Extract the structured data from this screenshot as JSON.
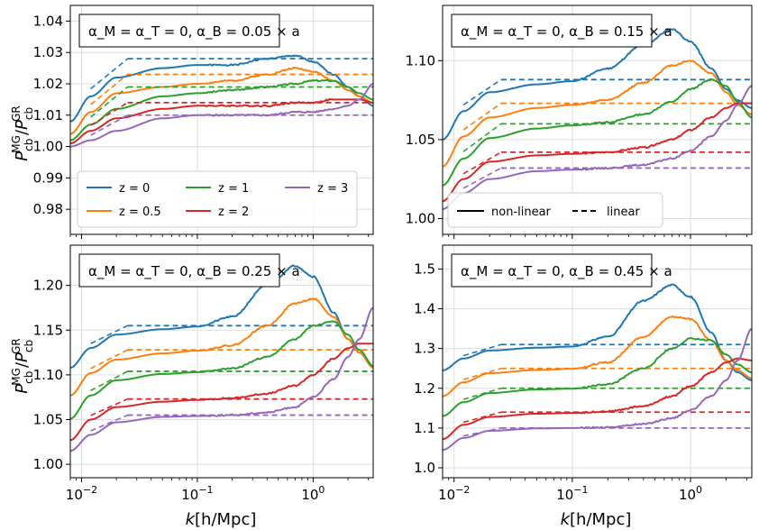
{
  "figure": {
    "ylabel": "P_cb^MG/P_cb^GR",
    "xlabel": "k[h/Mpc]"
  },
  "legend_z": {
    "entries": [
      {
        "label": "z = 0",
        "color": "#1f77b4"
      },
      {
        "label": "z = 1",
        "color": "#2ca02c"
      },
      {
        "label": "z = 3",
        "color": "#9467bd"
      },
      {
        "label": "z = 0.5",
        "color": "#ff7f0e"
      },
      {
        "label": "z = 2",
        "color": "#d62728"
      }
    ]
  },
  "legend_style": {
    "entries": [
      {
        "label": "non-linear",
        "style": "solid"
      },
      {
        "label": "linear",
        "style": "dashed"
      }
    ]
  },
  "chart_data": [
    {
      "type": "line",
      "annotation": "α_M = α_T = 0, α_B = 0.05 × a",
      "x_scale": "log",
      "xlim": [
        0.008,
        3.3
      ],
      "ylim": [
        0.972,
        1.045
      ],
      "yticks": [
        "0.98",
        "0.99",
        "1.00",
        "1.01",
        "1.02",
        "1.03",
        "1.04"
      ],
      "xticks": [
        "10^-2",
        "10^-1",
        "10^0"
      ],
      "grid": true,
      "series": [
        {
          "name": "z = 0",
          "color": "#1f77b4",
          "linear": 1.028,
          "k_nl": [
            0.008,
            0.012,
            0.02,
            0.05,
            0.1,
            0.2,
            0.4,
            0.7,
            1.0,
            1.5,
            2.0,
            2.5,
            3.3
          ],
          "nonlinear": [
            1.008,
            1.016,
            1.022,
            1.025,
            1.026,
            1.026,
            1.028,
            1.029,
            1.027,
            1.023,
            1.019,
            1.016,
            1.013
          ]
        },
        {
          "name": "z = 0.5",
          "color": "#ff7f0e",
          "linear": 1.023,
          "k_nl": [
            0.008,
            0.012,
            0.02,
            0.05,
            0.1,
            0.2,
            0.4,
            0.7,
            1.0,
            1.5,
            2.0,
            2.5,
            3.3
          ],
          "nonlinear": [
            1.004,
            1.011,
            1.017,
            1.019,
            1.02,
            1.021,
            1.023,
            1.025,
            1.024,
            1.021,
            1.018,
            1.016,
            1.014
          ]
        },
        {
          "name": "z = 1",
          "color": "#2ca02c",
          "linear": 1.019,
          "k_nl": [
            0.008,
            0.012,
            0.02,
            0.05,
            0.1,
            0.2,
            0.4,
            0.7,
            1.0,
            1.5,
            2.0,
            2.5,
            3.3
          ],
          "nonlinear": [
            1.002,
            1.007,
            1.012,
            1.016,
            1.017,
            1.018,
            1.019,
            1.02,
            1.021,
            1.021,
            1.019,
            1.017,
            1.015
          ]
        },
        {
          "name": "z = 2",
          "color": "#d62728",
          "linear": 1.014,
          "k_nl": [
            0.008,
            0.012,
            0.02,
            0.05,
            0.1,
            0.2,
            0.4,
            0.7,
            1.0,
            1.5,
            2.0,
            2.5,
            3.3
          ],
          "nonlinear": [
            1.001,
            1.005,
            1.009,
            1.012,
            1.013,
            1.013,
            1.013,
            1.014,
            1.014,
            1.015,
            1.015,
            1.015,
            1.014
          ]
        },
        {
          "name": "z = 3",
          "color": "#9467bd",
          "linear": 1.01,
          "k_nl": [
            0.008,
            0.012,
            0.02,
            0.05,
            0.1,
            0.2,
            0.4,
            0.7,
            1.0,
            1.5,
            2.0,
            2.5,
            3.3
          ],
          "nonlinear": [
            1.0,
            1.002,
            1.005,
            1.009,
            1.01,
            1.01,
            1.01,
            1.011,
            1.011,
            1.012,
            1.013,
            1.015,
            1.02
          ]
        }
      ]
    },
    {
      "type": "line",
      "annotation": "α_M = α_T = 0, α_B = 0.15 × a",
      "x_scale": "log",
      "xlim": [
        0.008,
        3.3
      ],
      "ylim": [
        0.99,
        1.135
      ],
      "yticks": [
        "1.00",
        "1.05",
        "1.10"
      ],
      "xticks": [
        "10^-2",
        "10^-1",
        "10^0"
      ],
      "grid": true,
      "series": [
        {
          "name": "z = 0",
          "color": "#1f77b4",
          "linear": 1.088,
          "k_nl": [
            0.008,
            0.012,
            0.02,
            0.05,
            0.1,
            0.2,
            0.4,
            0.7,
            1.0,
            1.5,
            2.0,
            2.5,
            3.3
          ],
          "nonlinear": [
            1.05,
            1.068,
            1.08,
            1.085,
            1.087,
            1.095,
            1.11,
            1.12,
            1.112,
            1.095,
            1.082,
            1.075,
            1.07
          ]
        },
        {
          "name": "z = 0.5",
          "color": "#ff7f0e",
          "linear": 1.073,
          "k_nl": [
            0.008,
            0.012,
            0.02,
            0.05,
            0.1,
            0.2,
            0.4,
            0.7,
            1.0,
            1.5,
            2.0,
            2.5,
            3.3
          ],
          "nonlinear": [
            1.033,
            1.052,
            1.064,
            1.07,
            1.072,
            1.075,
            1.086,
            1.097,
            1.1,
            1.092,
            1.08,
            1.072,
            1.066
          ]
        },
        {
          "name": "z = 1",
          "color": "#2ca02c",
          "linear": 1.06,
          "k_nl": [
            0.008,
            0.012,
            0.02,
            0.05,
            0.1,
            0.2,
            0.4,
            0.7,
            1.0,
            1.5,
            2.0,
            2.5,
            3.3
          ],
          "nonlinear": [
            1.021,
            1.038,
            1.051,
            1.057,
            1.059,
            1.061,
            1.066,
            1.074,
            1.082,
            1.088,
            1.084,
            1.074,
            1.064
          ]
        },
        {
          "name": "z = 2",
          "color": "#d62728",
          "linear": 1.042,
          "k_nl": [
            0.008,
            0.012,
            0.02,
            0.05,
            0.1,
            0.2,
            0.4,
            0.7,
            1.0,
            1.5,
            2.0,
            2.5,
            3.3
          ],
          "nonlinear": [
            1.011,
            1.025,
            1.036,
            1.04,
            1.041,
            1.042,
            1.045,
            1.05,
            1.056,
            1.064,
            1.07,
            1.073,
            1.073
          ]
        },
        {
          "name": "z = 3",
          "color": "#9467bd",
          "linear": 1.032,
          "k_nl": [
            0.008,
            0.012,
            0.02,
            0.05,
            0.1,
            0.2,
            0.4,
            0.7,
            1.0,
            1.5,
            2.0,
            2.5,
            3.3
          ],
          "nonlinear": [
            1.006,
            1.016,
            1.025,
            1.03,
            1.031,
            1.032,
            1.034,
            1.038,
            1.043,
            1.052,
            1.062,
            1.072,
            1.084
          ]
        }
      ]
    },
    {
      "type": "line",
      "annotation": "α_M = α_T = 0, α_B = 0.25 × a",
      "x_scale": "log",
      "xlim": [
        0.008,
        3.3
      ],
      "ylim": [
        0.985,
        1.245
      ],
      "yticks": [
        "1.00",
        "1.05",
        "1.10",
        "1.15",
        "1.20"
      ],
      "xticks": [
        "10^-2",
        "10^-1",
        "10^0"
      ],
      "grid": true,
      "series": [
        {
          "name": "z = 0",
          "color": "#1f77b4",
          "linear": 1.155,
          "k_nl": [
            0.008,
            0.012,
            0.02,
            0.05,
            0.1,
            0.2,
            0.4,
            0.7,
            1.0,
            1.5,
            2.0,
            2.5,
            3.3
          ],
          "nonlinear": [
            1.108,
            1.13,
            1.145,
            1.151,
            1.154,
            1.165,
            1.2,
            1.222,
            1.21,
            1.17,
            1.14,
            1.125,
            1.11
          ]
        },
        {
          "name": "z = 0.5",
          "color": "#ff7f0e",
          "linear": 1.128,
          "k_nl": [
            0.008,
            0.012,
            0.02,
            0.05,
            0.1,
            0.2,
            0.4,
            0.7,
            1.0,
            1.5,
            2.0,
            2.5,
            3.3
          ],
          "nonlinear": [
            1.077,
            1.102,
            1.117,
            1.124,
            1.127,
            1.133,
            1.155,
            1.18,
            1.185,
            1.165,
            1.14,
            1.125,
            1.108
          ]
        },
        {
          "name": "z = 1",
          "color": "#2ca02c",
          "linear": 1.104,
          "k_nl": [
            0.008,
            0.012,
            0.02,
            0.05,
            0.1,
            0.2,
            0.4,
            0.7,
            1.0,
            1.5,
            2.0,
            2.5,
            3.3
          ],
          "nonlinear": [
            1.051,
            1.077,
            1.094,
            1.101,
            1.103,
            1.107,
            1.12,
            1.14,
            1.155,
            1.16,
            1.145,
            1.128,
            1.11
          ]
        },
        {
          "name": "z = 2",
          "color": "#d62728",
          "linear": 1.073,
          "k_nl": [
            0.008,
            0.012,
            0.02,
            0.05,
            0.1,
            0.2,
            0.4,
            0.7,
            1.0,
            1.5,
            2.0,
            2.5,
            3.3
          ],
          "nonlinear": [
            1.027,
            1.05,
            1.064,
            1.07,
            1.072,
            1.074,
            1.079,
            1.088,
            1.1,
            1.118,
            1.13,
            1.135,
            1.135
          ]
        },
        {
          "name": "z = 3",
          "color": "#9467bd",
          "linear": 1.055,
          "k_nl": [
            0.008,
            0.012,
            0.02,
            0.05,
            0.1,
            0.2,
            0.4,
            0.7,
            1.0,
            1.5,
            2.0,
            2.5,
            3.3
          ],
          "nonlinear": [
            1.015,
            1.033,
            1.047,
            1.053,
            1.054,
            1.055,
            1.058,
            1.064,
            1.075,
            1.095,
            1.12,
            1.14,
            1.175
          ]
        }
      ]
    },
    {
      "type": "line",
      "annotation": "α_M = α_T = 0, α_B = 0.45 × a",
      "x_scale": "log",
      "xlim": [
        0.008,
        3.3
      ],
      "ylim": [
        0.975,
        1.56
      ],
      "yticks": [
        "1.0",
        "1.1",
        "1.2",
        "1.3",
        "1.4",
        "1.5"
      ],
      "xticks": [
        "10^-2",
        "10^-1",
        "10^0"
      ],
      "grid": true,
      "series": [
        {
          "name": "z = 0",
          "color": "#1f77b4",
          "linear": 1.31,
          "k_nl": [
            0.008,
            0.012,
            0.02,
            0.05,
            0.1,
            0.2,
            0.4,
            0.7,
            1.0,
            1.5,
            2.0,
            2.5,
            3.3
          ],
          "nonlinear": [
            1.245,
            1.275,
            1.295,
            1.302,
            1.305,
            1.33,
            1.42,
            1.46,
            1.43,
            1.34,
            1.27,
            1.24,
            1.22
          ]
        },
        {
          "name": "z = 0.5",
          "color": "#ff7f0e",
          "linear": 1.25,
          "k_nl": [
            0.008,
            0.012,
            0.02,
            0.05,
            0.1,
            0.2,
            0.4,
            0.7,
            1.0,
            1.5,
            2.0,
            2.5,
            3.3
          ],
          "nonlinear": [
            1.18,
            1.215,
            1.238,
            1.246,
            1.249,
            1.265,
            1.33,
            1.38,
            1.375,
            1.32,
            1.27,
            1.245,
            1.225
          ]
        },
        {
          "name": "z = 1",
          "color": "#2ca02c",
          "linear": 1.2,
          "k_nl": [
            0.008,
            0.012,
            0.02,
            0.05,
            0.1,
            0.2,
            0.4,
            0.7,
            1.0,
            1.5,
            2.0,
            2.5,
            3.3
          ],
          "nonlinear": [
            1.13,
            1.165,
            1.188,
            1.197,
            1.199,
            1.21,
            1.25,
            1.3,
            1.325,
            1.32,
            1.285,
            1.26,
            1.24
          ]
        },
        {
          "name": "z = 2",
          "color": "#d62728",
          "linear": 1.14,
          "k_nl": [
            0.008,
            0.012,
            0.02,
            0.05,
            0.1,
            0.2,
            0.4,
            0.7,
            1.0,
            1.5,
            2.0,
            2.5,
            3.3
          ],
          "nonlinear": [
            1.072,
            1.108,
            1.128,
            1.136,
            1.138,
            1.142,
            1.155,
            1.18,
            1.205,
            1.24,
            1.265,
            1.275,
            1.27
          ]
        },
        {
          "name": "z = 3",
          "color": "#9467bd",
          "linear": 1.1,
          "k_nl": [
            0.008,
            0.012,
            0.02,
            0.05,
            0.1,
            0.2,
            0.4,
            0.7,
            1.0,
            1.5,
            2.0,
            2.5,
            3.3
          ],
          "nonlinear": [
            1.045,
            1.075,
            1.093,
            1.099,
            1.1,
            1.102,
            1.11,
            1.125,
            1.145,
            1.18,
            1.22,
            1.27,
            1.35
          ]
        }
      ]
    }
  ]
}
